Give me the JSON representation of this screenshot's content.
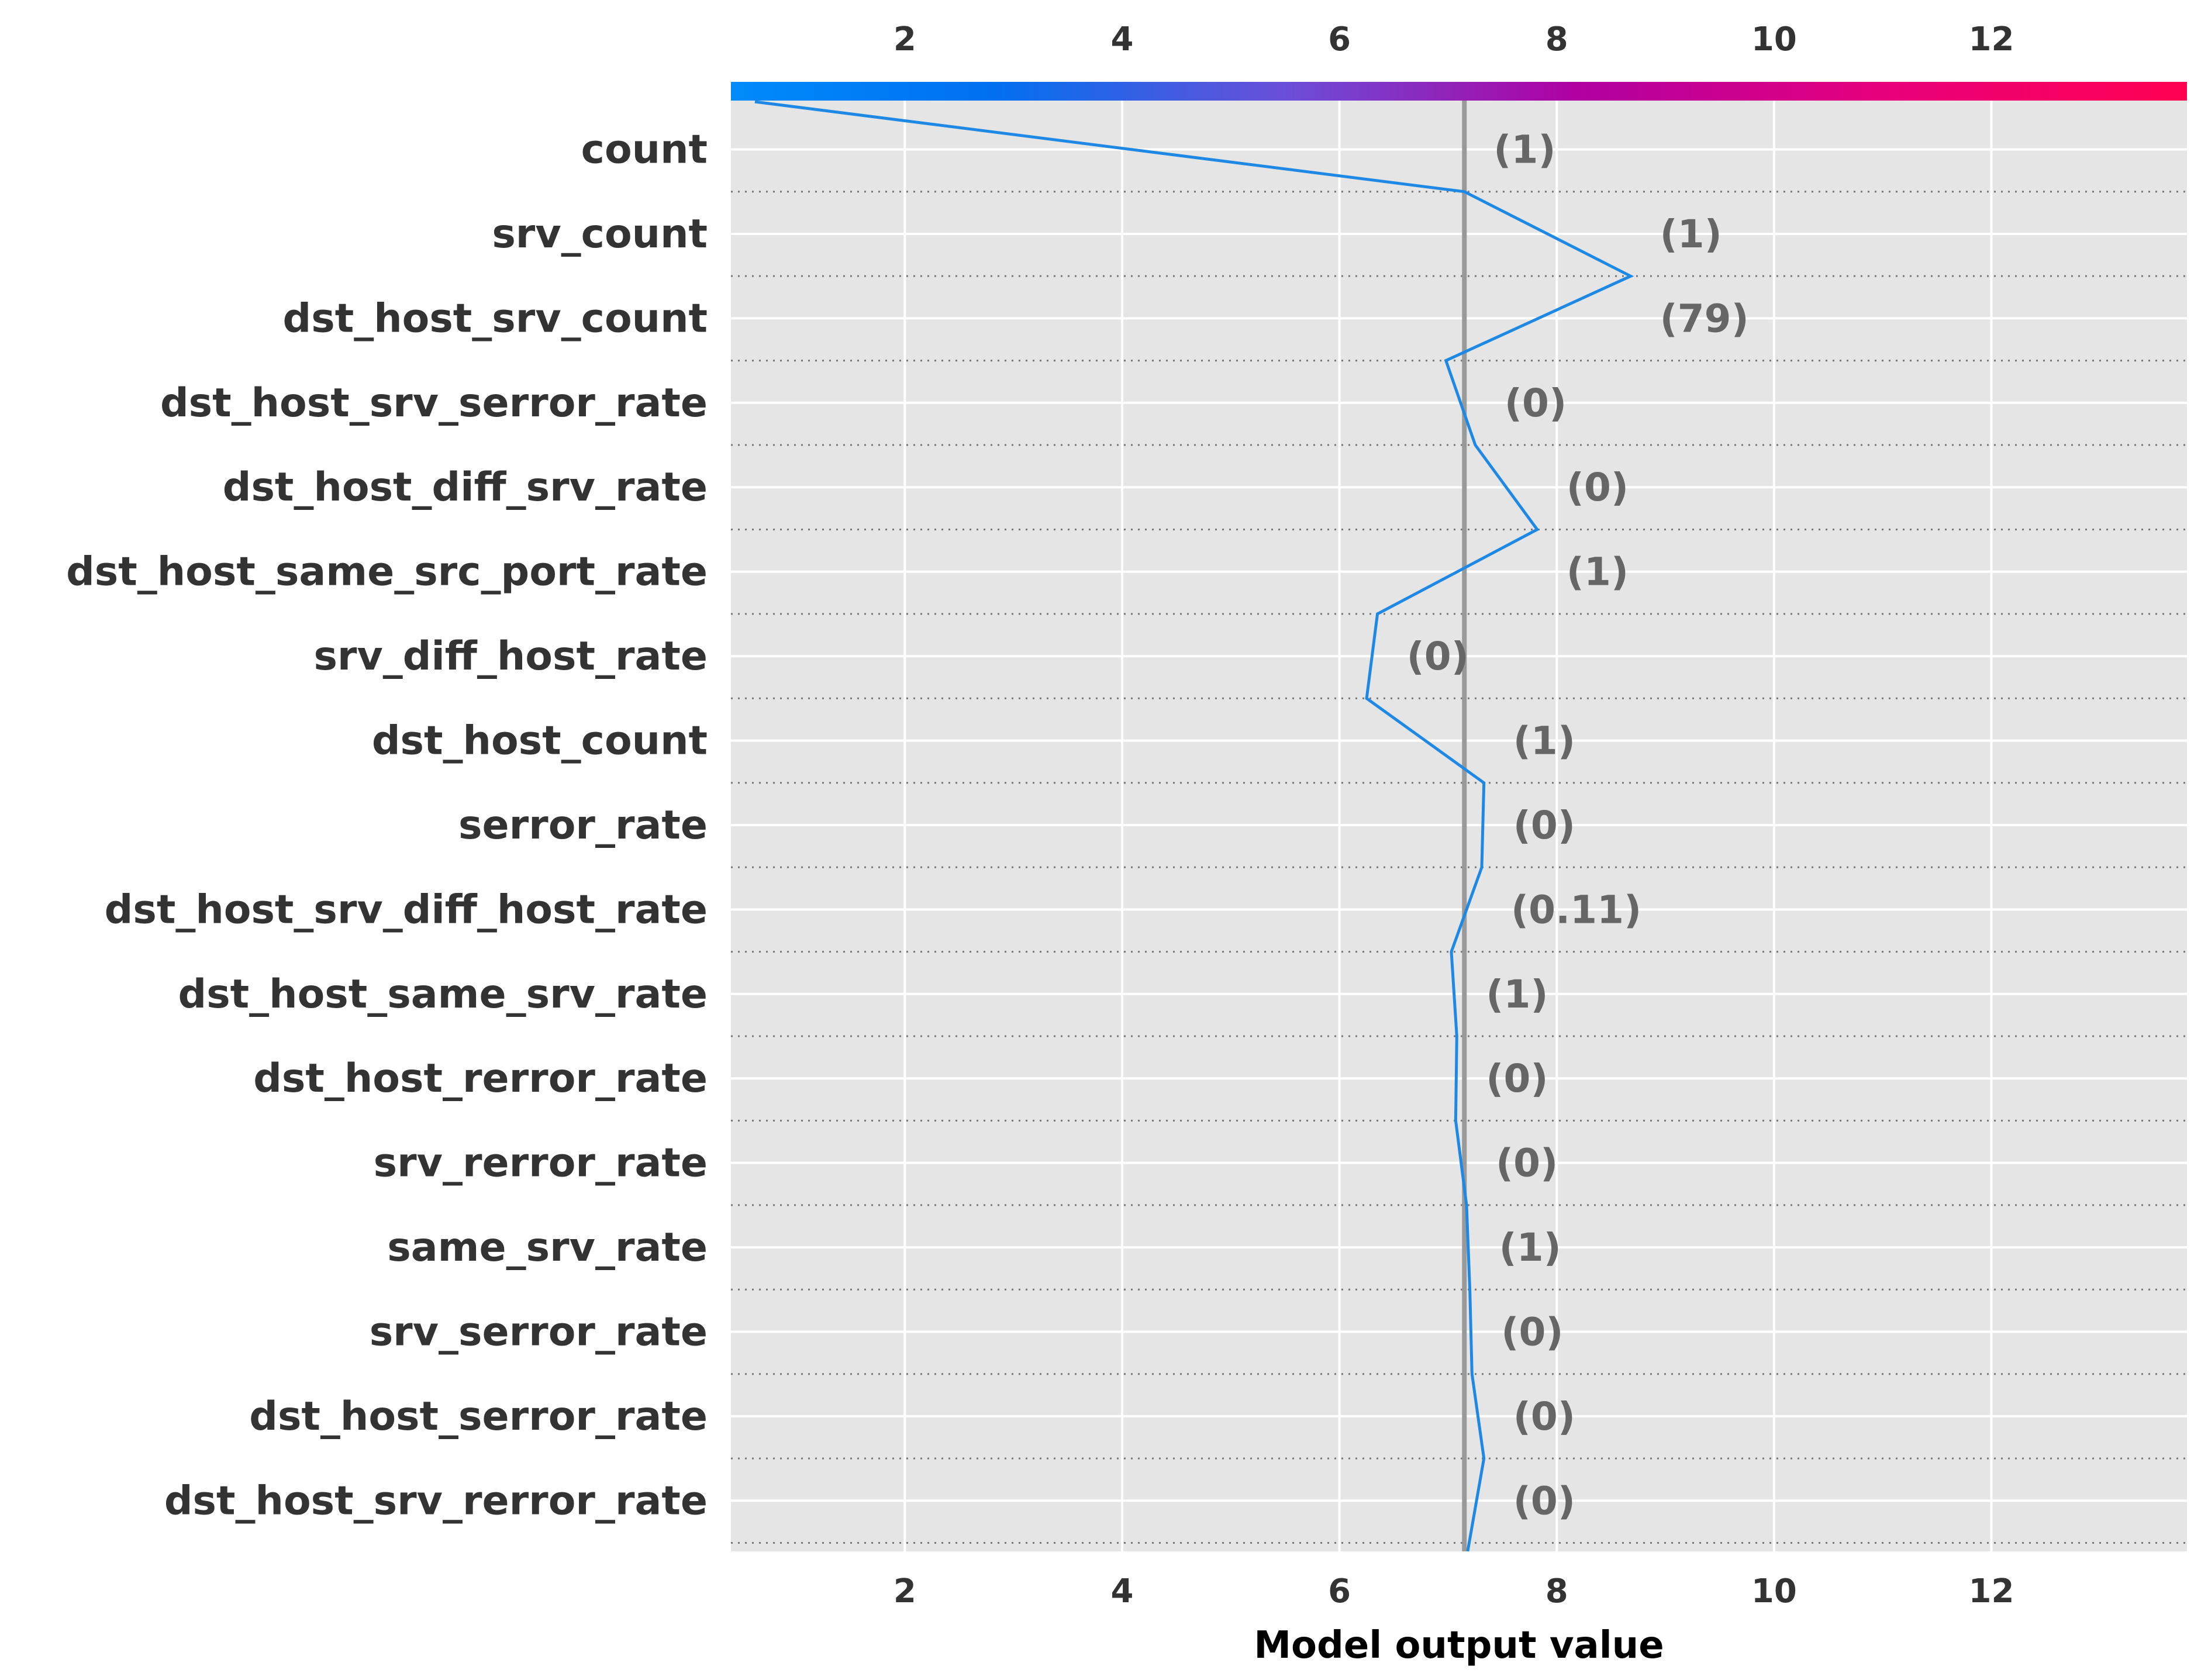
{
  "chart_data": {
    "type": "line",
    "subtype": "shap-decision-plot",
    "xlabel": "Model output value",
    "xlim": [
      0.4,
      13.8
    ],
    "xticks": [
      2,
      4,
      6,
      8,
      10,
      12
    ],
    "base_value": 7.15,
    "grid": true,
    "colorbar": {
      "position": "top",
      "colors": [
        "#008bfb",
        "#7b4fe0",
        "#b100a0",
        "#ff0051"
      ]
    },
    "line_color": "#1e88e5",
    "features": [
      {
        "name": "count",
        "value_label": "(1)",
        "output": 7.15
      },
      {
        "name": "srv_count",
        "value_label": "(1)",
        "output": 8.68
      },
      {
        "name": "dst_host_srv_count",
        "value_label": "(79)",
        "output": 6.98
      },
      {
        "name": "dst_host_srv_serror_rate",
        "value_label": "(0)",
        "output": 7.25
      },
      {
        "name": "dst_host_diff_srv_rate",
        "value_label": "(0)",
        "output": 7.82
      },
      {
        "name": "dst_host_same_src_port_rate",
        "value_label": "(1)",
        "output": 6.35
      },
      {
        "name": "srv_diff_host_rate",
        "value_label": "(0)",
        "output": 6.25
      },
      {
        "name": "dst_host_count",
        "value_label": "(1)",
        "output": 7.33
      },
      {
        "name": "serror_rate",
        "value_label": "(0)",
        "output": 7.31
      },
      {
        "name": "dst_host_srv_diff_host_rate",
        "value_label": "(0.11)",
        "output": 7.03
      },
      {
        "name": "dst_host_same_srv_rate",
        "value_label": "(1)",
        "output": 7.08
      },
      {
        "name": "dst_host_rerror_rate",
        "value_label": "(0)",
        "output": 7.07
      },
      {
        "name": "srv_rerror_rate",
        "value_label": "(0)",
        "output": 7.17
      },
      {
        "name": "same_srv_rate",
        "value_label": "(1)",
        "output": 7.2
      },
      {
        "name": "srv_serror_rate",
        "value_label": "(0)",
        "output": 7.22
      },
      {
        "name": "dst_host_serror_rate",
        "value_label": "(0)",
        "output": 7.33
      },
      {
        "name": "dst_host_srv_rerror_rate",
        "value_label": "(0)",
        "output": 7.18
      }
    ],
    "start_output": 0.62
  }
}
